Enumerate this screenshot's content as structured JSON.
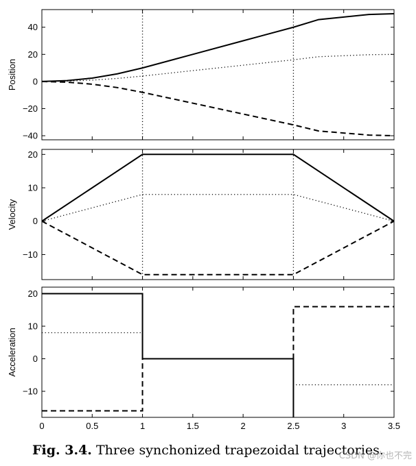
{
  "caption": {
    "label": "Fig. 3.4.",
    "text": "Three synchonized trapezoidal trajectories."
  },
  "watermark": "CSDN @你也不完",
  "chart_data": [
    {
      "type": "line",
      "ylabel": "Position",
      "xlim": [
        0,
        3.5
      ],
      "ylim": [
        -43,
        53
      ],
      "yticks": [
        -40,
        -20,
        0,
        20,
        40
      ],
      "xticks": [],
      "vgrid": [
        1,
        2.5
      ],
      "series": [
        {
          "style": "solid",
          "points": [
            [
              0,
              0
            ],
            [
              0.25,
              0.625
            ],
            [
              0.5,
              2.5
            ],
            [
              0.75,
              5.625
            ],
            [
              1,
              10
            ],
            [
              1.5,
              20
            ],
            [
              2,
              30
            ],
            [
              2.5,
              40
            ],
            [
              2.75,
              45.63
            ],
            [
              3,
              47.5
            ],
            [
              3.25,
              49.38
            ],
            [
              3.5,
              50
            ]
          ]
        },
        {
          "style": "dotted",
          "points": [
            [
              0,
              0
            ],
            [
              0.25,
              0.25
            ],
            [
              0.5,
              1
            ],
            [
              0.75,
              2.25
            ],
            [
              1,
              4
            ],
            [
              1.5,
              8
            ],
            [
              2,
              12
            ],
            [
              2.5,
              16
            ],
            [
              2.75,
              18.25
            ],
            [
              3,
              19
            ],
            [
              3.25,
              19.75
            ],
            [
              3.5,
              20
            ]
          ]
        },
        {
          "style": "dashed",
          "points": [
            [
              0,
              0
            ],
            [
              0.25,
              -0.5
            ],
            [
              0.5,
              -2
            ],
            [
              0.75,
              -4.5
            ],
            [
              1,
              -8
            ],
            [
              1.5,
              -16
            ],
            [
              2,
              -24
            ],
            [
              2.5,
              -32
            ],
            [
              2.75,
              -36.5
            ],
            [
              3,
              -38
            ],
            [
              3.25,
              -39.5
            ],
            [
              3.5,
              -40
            ]
          ]
        }
      ]
    },
    {
      "type": "line",
      "ylabel": "Velocity",
      "xlim": [
        0,
        3.5
      ],
      "ylim": [
        -17.5,
        21.5
      ],
      "yticks": [
        -10,
        0,
        10,
        20
      ],
      "xticks": [],
      "vgrid": [
        1,
        2.5
      ],
      "series": [
        {
          "style": "solid",
          "points": [
            [
              0,
              0
            ],
            [
              1,
              20
            ],
            [
              2.5,
              20
            ],
            [
              3.5,
              0
            ]
          ]
        },
        {
          "style": "dotted",
          "points": [
            [
              0,
              0
            ],
            [
              1,
              8
            ],
            [
              2.5,
              8
            ],
            [
              3.5,
              0
            ]
          ]
        },
        {
          "style": "dashed",
          "points": [
            [
              0,
              0
            ],
            [
              1,
              -16
            ],
            [
              2.5,
              -16
            ],
            [
              3.5,
              0
            ]
          ]
        }
      ]
    },
    {
      "type": "line",
      "ylabel": "Acceleration",
      "xlim": [
        0,
        3.5
      ],
      "ylim": [
        -18,
        22
      ],
      "yticks": [
        -10,
        0,
        10,
        20
      ],
      "xticks": [
        0,
        0.5,
        1,
        1.5,
        2,
        2.5,
        3,
        3.5
      ],
      "vgrid": [],
      "series": [
        {
          "style": "solid",
          "points": [
            [
              0,
              20
            ],
            [
              1,
              20
            ],
            [
              1,
              0
            ],
            [
              2.5,
              0
            ],
            [
              2.5,
              -18
            ]
          ]
        },
        {
          "style": "dotted",
          "points": [
            [
              0,
              8
            ],
            [
              1,
              8
            ],
            [
              1,
              0
            ],
            [
              2.5,
              0
            ],
            [
              2.5,
              -8
            ],
            [
              3.5,
              -8
            ]
          ]
        },
        {
          "style": "dashed",
          "points": [
            [
              0,
              -16
            ],
            [
              1,
              -16
            ],
            [
              1,
              0
            ],
            [
              2.5,
              0
            ],
            [
              2.5,
              16
            ],
            [
              3.5,
              16
            ]
          ]
        }
      ]
    }
  ]
}
